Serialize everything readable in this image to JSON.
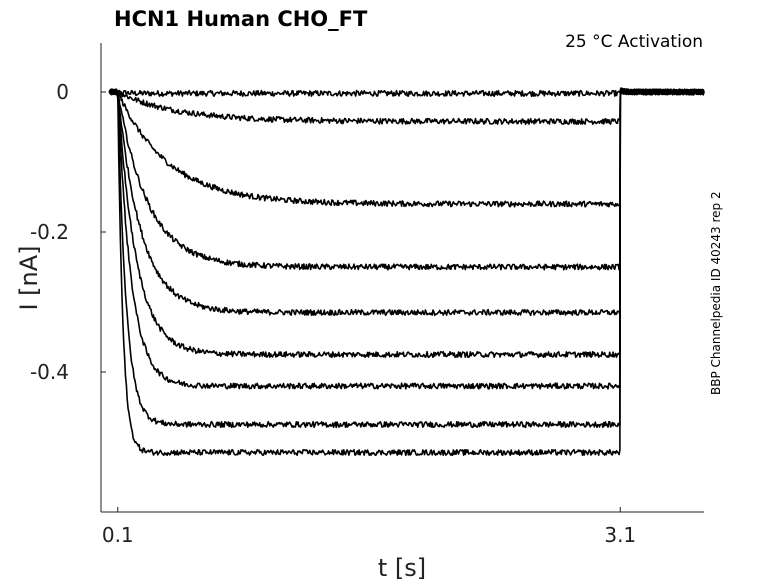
{
  "chart_data": {
    "type": "line",
    "title": "HCN1  Human  CHO_FT",
    "annotation": "25 °C  Activation",
    "side_label": "BBP Channelpedia ID 40243 rep 2",
    "xlabel": "t [s]",
    "ylabel": "I [nA]",
    "xticks": [
      0.1,
      3.1
    ],
    "yticks": [
      0,
      -0.2,
      -0.4
    ],
    "xlim": [
      0.0,
      3.6
    ],
    "ylim": [
      -0.6,
      0.07
    ],
    "grid": false,
    "pulse_start": 0.1,
    "pulse_end": 3.1,
    "series": [
      {
        "steady": -0.002,
        "tau": 0.05
      },
      {
        "steady": -0.042,
        "tau": 0.35
      },
      {
        "steady": -0.16,
        "tau": 0.3
      },
      {
        "steady": -0.25,
        "tau": 0.18
      },
      {
        "steady": -0.315,
        "tau": 0.14
      },
      {
        "steady": -0.375,
        "tau": 0.11
      },
      {
        "steady": -0.42,
        "tau": 0.08
      },
      {
        "steady": -0.475,
        "tau": 0.05
      },
      {
        "steady": -0.515,
        "tau": 0.03
      }
    ]
  }
}
